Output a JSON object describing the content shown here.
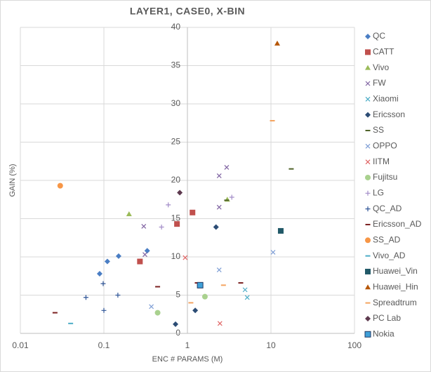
{
  "chart_data": {
    "type": "scatter",
    "title": "LAYER1, CASE0, X-BIN",
    "x_label": "ENC # PARAMS (M)",
    "y_label": "GAIN (%)",
    "x_log": true,
    "grid": true,
    "legend": "right",
    "xlim": [
      0.01,
      100
    ],
    "xticks": [
      0.01,
      0.1,
      1,
      10,
      100
    ],
    "ylim": [
      0,
      40
    ],
    "yticks": [
      0,
      5,
      10,
      15,
      20,
      25,
      30,
      35,
      40
    ],
    "series": [
      {
        "name": "QC",
        "color": "#4a7ec4",
        "marker": "diamond",
        "x": [
          0.089,
          0.11,
          0.15,
          0.33
        ],
        "y": [
          7.8,
          9.4,
          10.1,
          10.8
        ]
      },
      {
        "name": "CATT",
        "color": "#c0504d",
        "marker": "square",
        "x": [
          0.27,
          0.75,
          1.15
        ],
        "y": [
          9.4,
          14.3,
          15.8
        ]
      },
      {
        "name": "Vivo",
        "color": "#9bbb59",
        "marker": "triangle",
        "x": [
          0.2,
          3.0
        ],
        "y": [
          15.6,
          17.5
        ]
      },
      {
        "name": "FW",
        "color": "#8064a2",
        "marker": "x",
        "x": [
          0.3,
          0.31,
          2.4,
          2.95,
          2.4
        ],
        "y": [
          14.0,
          10.3,
          20.6,
          21.7,
          16.5
        ]
      },
      {
        "name": "Xiaomi",
        "color": "#4bacc6",
        "marker": "x",
        "x": [
          4.9,
          5.2
        ],
        "y": [
          5.7,
          4.7
        ]
      },
      {
        "name": "Ericsson",
        "color": "#2c4d75",
        "marker": "diamond",
        "x": [
          2.2,
          1.24,
          0.72
        ],
        "y": [
          13.9,
          3.0,
          1.2
        ]
      },
      {
        "name": "SS",
        "color": "#4f6228",
        "marker": "dash",
        "x": [
          17.5,
          2.95
        ],
        "y": [
          21.5,
          17.4
        ]
      },
      {
        "name": "OPPO",
        "color": "#7f9fd6",
        "marker": "x",
        "x": [
          10.6,
          2.4,
          0.37
        ],
        "y": [
          10.6,
          8.3,
          3.5
        ]
      },
      {
        "name": "IITM",
        "color": "#e06666",
        "marker": "x",
        "x": [
          0.94,
          2.45
        ],
        "y": [
          9.9,
          1.3
        ]
      },
      {
        "name": "Fujitsu",
        "color": "#a9d18e",
        "marker": "circle",
        "x": [
          0.44,
          1.62
        ],
        "y": [
          2.7,
          4.8
        ]
      },
      {
        "name": "LG",
        "color": "#a28cc8",
        "marker": "plus",
        "x": [
          0.59,
          0.49,
          3.4
        ],
        "y": [
          16.8,
          13.9,
          17.8
        ]
      },
      {
        "name": "QC_AD",
        "color": "#2f5597",
        "marker": "plus",
        "x": [
          0.061,
          0.098,
          0.1,
          0.147
        ],
        "y": [
          4.7,
          6.5,
          3.0,
          5.0
        ]
      },
      {
        "name": "Ericsson_AD",
        "color": "#7b2020",
        "marker": "dash",
        "x": [
          0.026,
          0.44,
          1.31,
          4.35
        ],
        "y": [
          2.7,
          6.1,
          6.6,
          6.6
        ]
      },
      {
        "name": "SS_AD",
        "color": "#f79646",
        "marker": "circle",
        "x": [
          0.03
        ],
        "y": [
          19.3
        ]
      },
      {
        "name": "Vivo_AD",
        "color": "#4bacc6",
        "marker": "dash",
        "x": [
          0.04
        ],
        "y": [
          1.3
        ]
      },
      {
        "name": "Huawei_Vin",
        "color": "#215968",
        "marker": "square",
        "x": [
          13.1
        ],
        "y": [
          13.4
        ]
      },
      {
        "name": "Huawei_Hin",
        "color": "#b65708",
        "marker": "triangle",
        "x": [
          11.9
        ],
        "y": [
          37.9
        ]
      },
      {
        "name": "Spreadtrum",
        "color": "#f4a460",
        "marker": "dash",
        "x": [
          10.4,
          1.1,
          2.7
        ],
        "y": [
          27.8,
          4.0,
          6.3
        ]
      },
      {
        "name": "PC Lab",
        "color": "#5e3a4f",
        "marker": "diamond",
        "x": [
          0.81
        ],
        "y": [
          18.4
        ]
      },
      {
        "name": "Nokia",
        "color": "#3fa0d8",
        "marker": "square-outline",
        "x": [
          1.42
        ],
        "y": [
          6.3
        ]
      }
    ]
  }
}
